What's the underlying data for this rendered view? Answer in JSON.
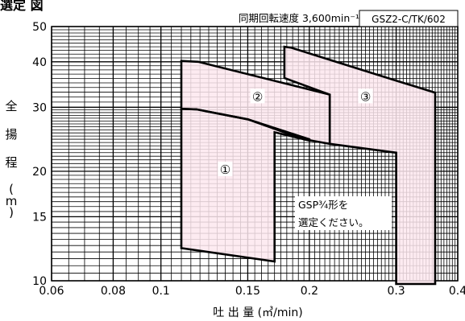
{
  "chart_data": {
    "type": "area",
    "title": "選定  図",
    "condition": "同期回転速度 3,600min⁻¹",
    "model": "GSZ2-C/TK/602",
    "xlabel": "吐  出  量 (㎥/min)",
    "ylabel_chars": [
      "全",
      "揚",
      "程",
      "(",
      "m",
      ")"
    ],
    "x_scale": "log",
    "y_scale": "log",
    "xlim": [
      0.06,
      0.4
    ],
    "ylim": [
      10,
      50
    ],
    "x_ticks": [
      {
        "v": 0.06,
        "label": "0.06"
      },
      {
        "v": 0.08,
        "label": "0.08"
      },
      {
        "v": 0.1,
        "label": "0.1"
      },
      {
        "v": 0.15,
        "label": "0.15"
      },
      {
        "v": 0.2,
        "label": "0.2"
      },
      {
        "v": 0.3,
        "label": "0.3"
      },
      {
        "v": 0.4,
        "label": "0.4"
      }
    ],
    "y_ticks": [
      {
        "v": 10,
        "label": "10"
      },
      {
        "v": 15,
        "label": "15"
      },
      {
        "v": 20,
        "label": "20"
      },
      {
        "v": 30,
        "label": "30"
      },
      {
        "v": 40,
        "label": "40"
      },
      {
        "v": 50,
        "label": "50"
      }
    ],
    "grid": true,
    "series": [
      {
        "name": "①",
        "polygon": [
          [
            0.11,
            12.3
          ],
          [
            0.11,
            29.7
          ],
          [
            0.118,
            29.6
          ],
          [
            0.15,
            27.8
          ],
          [
            0.2,
            24.5
          ],
          [
            0.2,
            24.3
          ],
          [
            0.17,
            25.6
          ],
          [
            0.17,
            11.3
          ],
          [
            0.11,
            12.3
          ]
        ],
        "label_at": [
          0.135,
          20.3
        ]
      },
      {
        "name": "②",
        "polygon": [
          [
            0.11,
            29.7
          ],
          [
            0.11,
            40.2
          ],
          [
            0.119,
            40.0
          ],
          [
            0.22,
            32.5
          ],
          [
            0.22,
            23.8
          ],
          [
            0.195,
            24.5
          ],
          [
            0.15,
            27.8
          ],
          [
            0.118,
            29.6
          ],
          [
            0.11,
            29.7
          ]
        ],
        "label_at": [
          0.157,
          32.2
        ]
      },
      {
        "name": "③",
        "polygon": [
          [
            0.178,
            36.1
          ],
          [
            0.178,
            44.0
          ],
          [
            0.184,
            43.7
          ],
          [
            0.3,
            35.5
          ],
          [
            0.36,
            32.9
          ],
          [
            0.36,
            9.8
          ],
          [
            0.3,
            9.8
          ],
          [
            0.3,
            22.5
          ],
          [
            0.22,
            23.8
          ],
          [
            0.22,
            32.5
          ],
          [
            0.178,
            36.1
          ]
        ],
        "label_at": [
          0.26,
          32.2
        ]
      }
    ],
    "annotation": [
      "GSP¾形を",
      "選定ください。"
    ]
  },
  "colors": {
    "fill": "#fde8ee",
    "line": "#000000",
    "grid": "#000000"
  }
}
